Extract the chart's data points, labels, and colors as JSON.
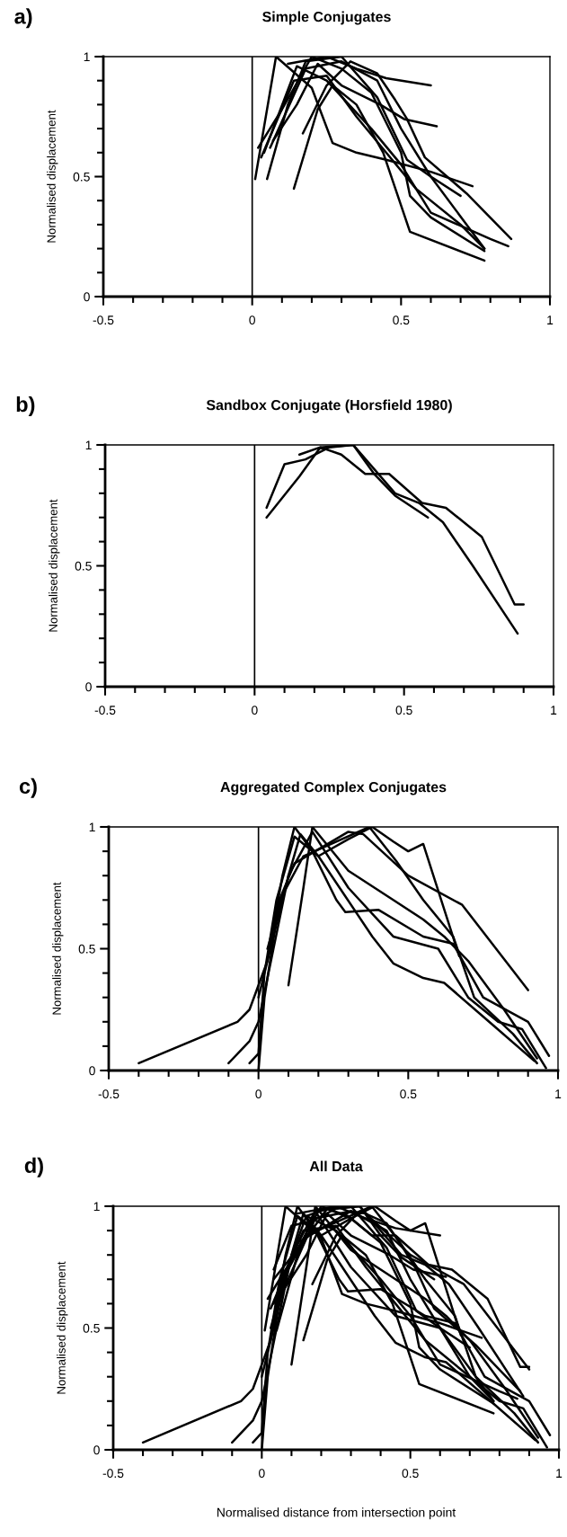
{
  "chart_data": [
    {
      "type": "line",
      "title": "Simple Conjugates",
      "ylabel": "Normalised displacement",
      "annotations": [
        "a)"
      ],
      "xlim": [
        -0.5,
        1
      ],
      "ylim": [
        0,
        1
      ],
      "xticks": [
        -0.5,
        {
          "value": -0.4,
          "label": null
        },
        {
          "value": -0.3,
          "label": null
        },
        {
          "value": -0.2,
          "label": null
        },
        {
          "value": -0.1,
          "label": null
        },
        0,
        {
          "value": 0.1,
          "label": null
        },
        {
          "value": 0.2,
          "label": null
        },
        {
          "value": 0.3,
          "label": null
        },
        {
          "value": 0.4,
          "label": null
        },
        0.5,
        {
          "value": 0.6,
          "label": null
        },
        {
          "value": 0.7,
          "label": null
        },
        {
          "value": 0.8,
          "label": null
        },
        {
          "value": 0.9,
          "label": null
        },
        1
      ],
      "yticks": [
        0,
        {
          "value": 0.1,
          "label": null
        },
        {
          "value": 0.2,
          "label": null
        },
        {
          "value": 0.3,
          "label": null
        },
        {
          "value": 0.4,
          "label": null
        },
        0.5,
        {
          "value": 0.6,
          "label": null
        },
        {
          "value": 0.7,
          "label": null
        },
        {
          "value": 0.8,
          "label": null
        },
        {
          "value": 0.9,
          "label": null
        },
        1
      ],
      "ref_lines": [
        {
          "axis": "x",
          "value": 0,
          "color": "#000000"
        }
      ],
      "series": [
        {
          "color": "#000000",
          "x": [
            0.01,
            0.08,
            0.2,
            0.27,
            0.35,
            0.45,
            0.6,
            0.74
          ],
          "values": [
            0.49,
            1.0,
            0.87,
            0.64,
            0.6,
            0.57,
            0.52,
            0.46
          ]
        },
        {
          "color": "#000000",
          "x": [
            0.05,
            0.12,
            0.18,
            0.3,
            0.42,
            0.52,
            0.6,
            0.7
          ],
          "values": [
            0.49,
            0.8,
            0.98,
            1.0,
            0.83,
            0.57,
            0.5,
            0.42
          ]
        },
        {
          "color": "#000000",
          "x": [
            0.14,
            0.22,
            0.27,
            0.35,
            0.44,
            0.53,
            0.78
          ],
          "values": [
            0.45,
            0.78,
            0.88,
            0.8,
            0.6,
            0.27,
            0.15
          ]
        },
        {
          "color": "#000000",
          "x": [
            0.02,
            0.1,
            0.2,
            0.3,
            0.4,
            0.5,
            0.53,
            0.6,
            0.78
          ],
          "values": [
            0.62,
            0.78,
            1.0,
            0.95,
            0.85,
            0.6,
            0.42,
            0.33,
            0.19
          ]
        },
        {
          "color": "#000000",
          "x": [
            0.04,
            0.15,
            0.25,
            0.4,
            0.5,
            0.6,
            0.8,
            0.86
          ],
          "values": [
            0.6,
            0.96,
            0.9,
            0.7,
            0.55,
            0.35,
            0.24,
            0.21
          ]
        },
        {
          "color": "#000000",
          "x": [
            0.17,
            0.25,
            0.33,
            0.42,
            0.48,
            0.52,
            0.58,
            0.72,
            0.87
          ],
          "values": [
            0.68,
            0.88,
            0.98,
            0.93,
            0.82,
            0.74,
            0.58,
            0.43,
            0.24
          ]
        },
        {
          "color": "#000000",
          "x": [
            0.12,
            0.25,
            0.35,
            0.45,
            0.6
          ],
          "values": [
            0.97,
            1.0,
            0.95,
            0.91,
            0.88
          ]
        },
        {
          "color": "#000000",
          "x": [
            0.07,
            0.15,
            0.22,
            0.3,
            0.43,
            0.51,
            0.62
          ],
          "values": [
            0.65,
            0.8,
            0.97,
            0.88,
            0.8,
            0.74,
            0.71
          ]
        },
        {
          "color": "#000000",
          "x": [
            0.03,
            0.14,
            0.25,
            0.35,
            0.45,
            0.55,
            0.7,
            0.78
          ],
          "values": [
            0.58,
            0.9,
            0.92,
            0.75,
            0.6,
            0.45,
            0.3,
            0.2
          ]
        },
        {
          "color": "#000000",
          "x": [
            0.06,
            0.18,
            0.3,
            0.42,
            0.5,
            0.6,
            0.78
          ],
          "values": [
            0.62,
            0.95,
            0.98,
            0.9,
            0.7,
            0.5,
            0.2
          ]
        }
      ]
    },
    {
      "type": "line",
      "title": "Sandbox Conjugate (Horsfield 1980)",
      "ylabel": "Normalised displacement",
      "annotations": [
        "b)"
      ],
      "xlim": [
        -0.5,
        1
      ],
      "ylim": [
        0,
        1
      ],
      "xticks": [
        -0.5,
        {
          "value": -0.4,
          "label": null
        },
        {
          "value": -0.3,
          "label": null
        },
        {
          "value": -0.2,
          "label": null
        },
        {
          "value": -0.1,
          "label": null
        },
        0,
        {
          "value": 0.1,
          "label": null
        },
        {
          "value": 0.2,
          "label": null
        },
        {
          "value": 0.3,
          "label": null
        },
        {
          "value": 0.4,
          "label": null
        },
        0.5,
        {
          "value": 0.6,
          "label": null
        },
        {
          "value": 0.7,
          "label": null
        },
        {
          "value": 0.8,
          "label": null
        },
        {
          "value": 0.9,
          "label": null
        },
        1
      ],
      "yticks": [
        0,
        {
          "value": 0.1,
          "label": null
        },
        {
          "value": 0.2,
          "label": null
        },
        {
          "value": 0.3,
          "label": null
        },
        {
          "value": 0.4,
          "label": null
        },
        0.5,
        {
          "value": 0.6,
          "label": null
        },
        {
          "value": 0.7,
          "label": null
        },
        {
          "value": 0.8,
          "label": null
        },
        {
          "value": 0.9,
          "label": null
        },
        1
      ],
      "ref_lines": [
        {
          "axis": "x",
          "value": 0,
          "color": "#000000"
        }
      ],
      "series": [
        {
          "color": "#000000",
          "x": [
            0.04,
            0.1,
            0.17,
            0.25,
            0.33,
            0.4,
            0.47,
            0.55,
            0.63,
            0.73,
            0.88
          ],
          "values": [
            0.74,
            0.92,
            0.94,
            0.99,
            1.0,
            0.9,
            0.8,
            0.76,
            0.68,
            0.5,
            0.22
          ]
        },
        {
          "color": "#000000",
          "x": [
            0.04,
            0.15,
            0.22,
            0.29,
            0.37,
            0.45,
            0.56,
            0.64,
            0.76,
            0.87,
            0.9
          ],
          "values": [
            0.7,
            0.87,
            0.99,
            0.96,
            0.88,
            0.88,
            0.76,
            0.74,
            0.62,
            0.34,
            0.34
          ]
        },
        {
          "color": "#000000",
          "x": [
            0.15,
            0.22,
            0.33,
            0.4,
            0.47,
            0.58
          ],
          "values": [
            0.96,
            0.99,
            1.0,
            0.88,
            0.79,
            0.7
          ]
        }
      ]
    },
    {
      "type": "line",
      "title": "Aggregated Complex Conjugates",
      "ylabel": "Normalised displacement",
      "annotations": [
        "c)"
      ],
      "xlim": [
        -0.5,
        1
      ],
      "ylim": [
        0,
        1
      ],
      "xticks": [
        -0.5,
        {
          "value": -0.4,
          "label": null
        },
        {
          "value": -0.3,
          "label": null
        },
        {
          "value": -0.2,
          "label": null
        },
        {
          "value": -0.1,
          "label": null
        },
        0,
        {
          "value": 0.1,
          "label": null
        },
        {
          "value": 0.2,
          "label": null
        },
        {
          "value": 0.3,
          "label": null
        },
        {
          "value": 0.4,
          "label": null
        },
        0.5,
        {
          "value": 0.6,
          "label": null
        },
        {
          "value": 0.7,
          "label": null
        },
        {
          "value": 0.8,
          "label": null
        },
        {
          "value": 0.9,
          "label": null
        },
        1
      ],
      "yticks": [
        0,
        {
          "value": 0.1,
          "label": null
        },
        {
          "value": 0.2,
          "label": null
        },
        {
          "value": 0.3,
          "label": null
        },
        {
          "value": 0.4,
          "label": null
        },
        0.5,
        {
          "value": 0.6,
          "label": null
        },
        {
          "value": 0.7,
          "label": null
        },
        {
          "value": 0.8,
          "label": null
        },
        {
          "value": 0.9,
          "label": null
        },
        1
      ],
      "ref_lines": [
        {
          "axis": "x",
          "value": 0,
          "color": "#000000"
        }
      ],
      "series": [
        {
          "color": "#000000",
          "x": [
            -0.4,
            -0.07,
            -0.03,
            0.03,
            0.08,
            0.12,
            0.18,
            0.26,
            0.29,
            0.4,
            0.55,
            0.65,
            0.75,
            0.9,
            0.97
          ],
          "values": [
            0.03,
            0.2,
            0.25,
            0.45,
            0.8,
            1.0,
            0.9,
            0.7,
            0.65,
            0.66,
            0.55,
            0.52,
            0.3,
            0.2,
            0.06
          ]
        },
        {
          "color": "#000000",
          "x": [
            -0.1,
            -0.03,
            0.0,
            0.05,
            0.1,
            0.14,
            0.2,
            0.3,
            0.38,
            0.45,
            0.5,
            0.55,
            0.67
          ],
          "values": [
            0.03,
            0.12,
            0.2,
            0.5,
            0.8,
            0.97,
            0.88,
            0.95,
            1.0,
            0.94,
            0.9,
            0.93,
            0.47
          ]
        },
        {
          "color": "#000000",
          "x": [
            -0.03,
            0.0,
            0.02,
            0.06,
            0.12,
            0.2,
            0.38,
            0.45,
            0.55,
            0.62,
            0.77,
            0.92
          ],
          "values": [
            0.03,
            0.07,
            0.4,
            0.7,
            0.96,
            0.88,
            0.55,
            0.44,
            0.38,
            0.36,
            0.2,
            0.04
          ]
        },
        {
          "color": "#000000",
          "x": [
            0.0,
            0.04,
            0.1,
            0.18,
            0.3,
            0.45,
            0.6,
            0.7,
            0.8,
            0.88,
            0.96
          ],
          "values": [
            0.3,
            0.5,
            0.8,
            0.98,
            0.75,
            0.55,
            0.5,
            0.3,
            0.2,
            0.17,
            0.01
          ]
        },
        {
          "color": "#000000",
          "x": [
            0.0,
            0.02,
            0.07,
            0.12,
            0.3,
            0.35,
            0.5,
            0.68,
            0.9
          ],
          "values": [
            0.0,
            0.3,
            0.7,
            0.85,
            0.98,
            0.97,
            0.8,
            0.68,
            0.33
          ]
        },
        {
          "color": "#000000",
          "x": [
            0.1,
            0.15,
            0.18,
            0.3,
            0.45,
            0.55,
            0.62,
            0.7,
            0.82,
            0.93
          ],
          "values": [
            0.35,
            0.75,
            1.0,
            0.82,
            0.7,
            0.62,
            0.55,
            0.45,
            0.25,
            0.05
          ]
        },
        {
          "color": "#000000",
          "x": [
            0.03,
            0.08,
            0.15,
            0.37,
            0.46,
            0.55,
            0.65,
            0.72,
            0.85,
            0.93
          ],
          "values": [
            0.5,
            0.72,
            0.88,
            1.0,
            0.86,
            0.7,
            0.55,
            0.3,
            0.15,
            0.03
          ]
        }
      ]
    },
    {
      "type": "line",
      "title": "All Data",
      "ylabel": "Normalised displacement",
      "xlabel": "Normalised distance from intersection point",
      "annotations": [
        "d)"
      ],
      "xlim": [
        -0.5,
        1
      ],
      "ylim": [
        0,
        1
      ],
      "xticks": [
        -0.5,
        {
          "value": -0.4,
          "label": null
        },
        {
          "value": -0.3,
          "label": null
        },
        {
          "value": -0.2,
          "label": null
        },
        {
          "value": -0.1,
          "label": null
        },
        0,
        {
          "value": 0.1,
          "label": null
        },
        {
          "value": 0.2,
          "label": null
        },
        {
          "value": 0.3,
          "label": null
        },
        {
          "value": 0.4,
          "label": null
        },
        0.5,
        {
          "value": 0.6,
          "label": null
        },
        {
          "value": 0.7,
          "label": null
        },
        {
          "value": 0.8,
          "label": null
        },
        {
          "value": 0.9,
          "label": null
        },
        1
      ],
      "yticks": [
        0,
        {
          "value": 0.1,
          "label": null
        },
        {
          "value": 0.2,
          "label": null
        },
        {
          "value": 0.3,
          "label": null
        },
        {
          "value": 0.4,
          "label": null
        },
        0.5,
        {
          "value": 0.6,
          "label": null
        },
        {
          "value": 0.7,
          "label": null
        },
        {
          "value": 0.8,
          "label": null
        },
        {
          "value": 0.9,
          "label": null
        },
        1
      ],
      "ref_lines": [
        {
          "axis": "x",
          "value": 0,
          "color": "#000000"
        }
      ],
      "series": [
        {
          "color": "#000000",
          "x": [
            0.01,
            0.08,
            0.2,
            0.27,
            0.35,
            0.45,
            0.6,
            0.74
          ],
          "values": [
            0.49,
            1.0,
            0.87,
            0.64,
            0.6,
            0.57,
            0.52,
            0.46
          ]
        },
        {
          "color": "#000000",
          "x": [
            0.05,
            0.12,
            0.18,
            0.3,
            0.42,
            0.52,
            0.6,
            0.7
          ],
          "values": [
            0.49,
            0.8,
            0.98,
            1.0,
            0.83,
            0.57,
            0.5,
            0.42
          ]
        },
        {
          "color": "#000000",
          "x": [
            0.14,
            0.22,
            0.27,
            0.35,
            0.44,
            0.53,
            0.78
          ],
          "values": [
            0.45,
            0.78,
            0.88,
            0.8,
            0.6,
            0.27,
            0.15
          ]
        },
        {
          "color": "#000000",
          "x": [
            0.02,
            0.1,
            0.2,
            0.3,
            0.4,
            0.5,
            0.53,
            0.6,
            0.78
          ],
          "values": [
            0.62,
            0.78,
            1.0,
            0.95,
            0.85,
            0.6,
            0.42,
            0.33,
            0.19
          ]
        },
        {
          "color": "#000000",
          "x": [
            0.04,
            0.15,
            0.25,
            0.4,
            0.5,
            0.6,
            0.8,
            0.86
          ],
          "values": [
            0.6,
            0.96,
            0.9,
            0.7,
            0.55,
            0.35,
            0.24,
            0.21
          ]
        },
        {
          "color": "#000000",
          "x": [
            0.17,
            0.25,
            0.33,
            0.42,
            0.48,
            0.52,
            0.58,
            0.72,
            0.87
          ],
          "values": [
            0.68,
            0.88,
            0.98,
            0.93,
            0.82,
            0.74,
            0.58,
            0.43,
            0.24
          ]
        },
        {
          "color": "#000000",
          "x": [
            0.12,
            0.25,
            0.35,
            0.45,
            0.6
          ],
          "values": [
            0.97,
            1.0,
            0.95,
            0.91,
            0.88
          ]
        },
        {
          "color": "#000000",
          "x": [
            0.07,
            0.15,
            0.22,
            0.3,
            0.43,
            0.51,
            0.62
          ],
          "values": [
            0.65,
            0.8,
            0.97,
            0.88,
            0.8,
            0.74,
            0.71
          ]
        },
        {
          "color": "#000000",
          "x": [
            0.03,
            0.14,
            0.25,
            0.35,
            0.45,
            0.55,
            0.7,
            0.78
          ],
          "values": [
            0.58,
            0.9,
            0.92,
            0.75,
            0.6,
            0.45,
            0.3,
            0.2
          ]
        },
        {
          "color": "#000000",
          "x": [
            0.06,
            0.18,
            0.3,
            0.42,
            0.5,
            0.6,
            0.78
          ],
          "values": [
            0.62,
            0.95,
            0.98,
            0.9,
            0.7,
            0.5,
            0.2
          ]
        },
        {
          "color": "#000000",
          "x": [
            0.04,
            0.1,
            0.17,
            0.25,
            0.33,
            0.4,
            0.47,
            0.55,
            0.63,
            0.73,
            0.88
          ],
          "values": [
            0.74,
            0.92,
            0.94,
            0.99,
            1.0,
            0.9,
            0.8,
            0.76,
            0.68,
            0.5,
            0.22
          ]
        },
        {
          "color": "#000000",
          "x": [
            0.04,
            0.15,
            0.22,
            0.29,
            0.37,
            0.45,
            0.56,
            0.64,
            0.76,
            0.87,
            0.9
          ],
          "values": [
            0.7,
            0.87,
            0.99,
            0.96,
            0.88,
            0.88,
            0.76,
            0.74,
            0.62,
            0.34,
            0.34
          ]
        },
        {
          "color": "#000000",
          "x": [
            0.15,
            0.22,
            0.33,
            0.4,
            0.47,
            0.58
          ],
          "values": [
            0.96,
            0.99,
            1.0,
            0.88,
            0.79,
            0.7
          ]
        },
        {
          "color": "#000000",
          "x": [
            -0.4,
            -0.07,
            -0.03,
            0.03,
            0.08,
            0.12,
            0.18,
            0.26,
            0.29,
            0.4,
            0.55,
            0.65,
            0.75,
            0.9,
            0.97
          ],
          "values": [
            0.03,
            0.2,
            0.25,
            0.45,
            0.8,
            1.0,
            0.9,
            0.7,
            0.65,
            0.66,
            0.55,
            0.52,
            0.3,
            0.2,
            0.06
          ]
        },
        {
          "color": "#000000",
          "x": [
            -0.1,
            -0.03,
            0.0,
            0.05,
            0.1,
            0.14,
            0.2,
            0.3,
            0.38,
            0.45,
            0.5,
            0.55,
            0.67
          ],
          "values": [
            0.03,
            0.12,
            0.2,
            0.5,
            0.8,
            0.97,
            0.88,
            0.95,
            1.0,
            0.94,
            0.9,
            0.93,
            0.47
          ]
        },
        {
          "color": "#000000",
          "x": [
            -0.03,
            0.0,
            0.02,
            0.06,
            0.12,
            0.2,
            0.38,
            0.45,
            0.55,
            0.62,
            0.77,
            0.92
          ],
          "values": [
            0.03,
            0.07,
            0.4,
            0.7,
            0.96,
            0.88,
            0.55,
            0.44,
            0.38,
            0.36,
            0.2,
            0.04
          ]
        },
        {
          "color": "#000000",
          "x": [
            0.0,
            0.04,
            0.1,
            0.18,
            0.3,
            0.45,
            0.6,
            0.7,
            0.8,
            0.88,
            0.96
          ],
          "values": [
            0.3,
            0.5,
            0.8,
            0.98,
            0.75,
            0.55,
            0.5,
            0.3,
            0.2,
            0.17,
            0.01
          ]
        },
        {
          "color": "#000000",
          "x": [
            0.0,
            0.02,
            0.07,
            0.12,
            0.3,
            0.35,
            0.5,
            0.68,
            0.9
          ],
          "values": [
            0.0,
            0.3,
            0.7,
            0.85,
            0.98,
            0.97,
            0.8,
            0.68,
            0.33
          ]
        },
        {
          "color": "#000000",
          "x": [
            0.1,
            0.15,
            0.18,
            0.3,
            0.45,
            0.55,
            0.62,
            0.7,
            0.82,
            0.93
          ],
          "values": [
            0.35,
            0.75,
            1.0,
            0.82,
            0.7,
            0.62,
            0.55,
            0.45,
            0.25,
            0.05
          ]
        },
        {
          "color": "#000000",
          "x": [
            0.03,
            0.08,
            0.15,
            0.37,
            0.46,
            0.55,
            0.65,
            0.72,
            0.85,
            0.93
          ],
          "values": [
            0.5,
            0.72,
            0.88,
            1.0,
            0.86,
            0.7,
            0.55,
            0.3,
            0.15,
            0.03
          ]
        }
      ]
    }
  ]
}
